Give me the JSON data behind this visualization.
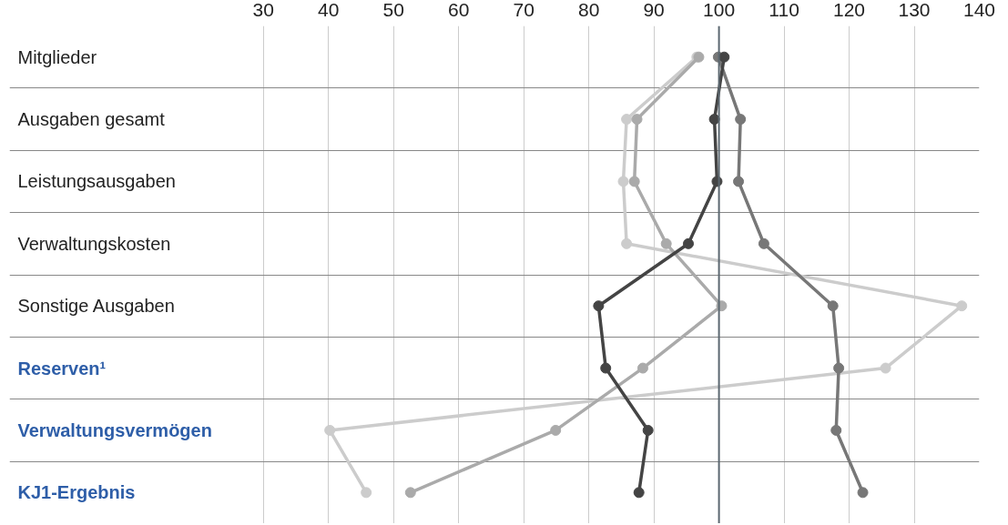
{
  "chart_data": {
    "type": "line",
    "orientation": "horizontal",
    "categories": [
      "Mitglieder",
      "Ausgaben gesamt",
      "Leistungsausgaben",
      "Verwaltungskosten",
      "Sonstige Ausgaben",
      "Reserven¹",
      "Verwaltungsvermögen",
      "KJ1-Ergebnis"
    ],
    "xlim": [
      -9,
      140
    ],
    "xticks": [
      30,
      40,
      50,
      60,
      70,
      80,
      90,
      100,
      110,
      120,
      130,
      140
    ],
    "grid": true,
    "marker": "circle",
    "line_style": "solid",
    "ref_lines": [
      {
        "axis": "x",
        "value": 100,
        "color": "#5b6770"
      }
    ],
    "series": [
      {
        "color": "#cccccc",
        "values": [
          96.6,
          85.8,
          85.3,
          85.8,
          137.3,
          125.6,
          40.2,
          45.8
        ]
      },
      {
        "color": "#aaaaaa",
        "values": [
          96.9,
          87.4,
          87.0,
          91.9,
          100.4,
          88.3,
          74.9,
          52.6
        ]
      },
      {
        "color": "#777777",
        "values": [
          99.9,
          103.3,
          103.0,
          106.9,
          117.5,
          118.4,
          118.0,
          122.1
        ]
      },
      {
        "color": "#444444",
        "values": [
          100.8,
          99.3,
          99.7,
          95.3,
          81.5,
          82.6,
          89.1,
          87.7
        ]
      }
    ]
  }
}
